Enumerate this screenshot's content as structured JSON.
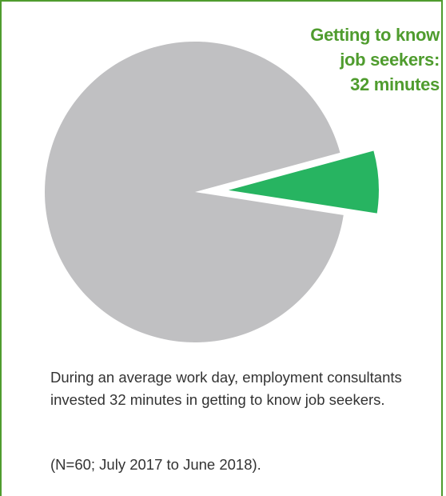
{
  "chart_data": {
    "type": "pie",
    "title": "",
    "slices": [
      {
        "label": "Getting to know job seekers",
        "minutes": 32,
        "color": "#27b461",
        "exploded": true
      },
      {
        "label": "",
        "minutes": 448,
        "color": "#c0c0c2",
        "exploded": false
      }
    ],
    "callout": {
      "lines": [
        "Getting to know",
        "job seekers:",
        "32 minutes"
      ],
      "color": "#4f9c2e"
    }
  },
  "caption": "During an average work day, employment consultants invested 32 minutes in getting to know job seekers.",
  "note": "(N=60; July 2017 to June 2018).",
  "colors": {
    "frame": "#4f9c2e",
    "text": "#333333"
  }
}
